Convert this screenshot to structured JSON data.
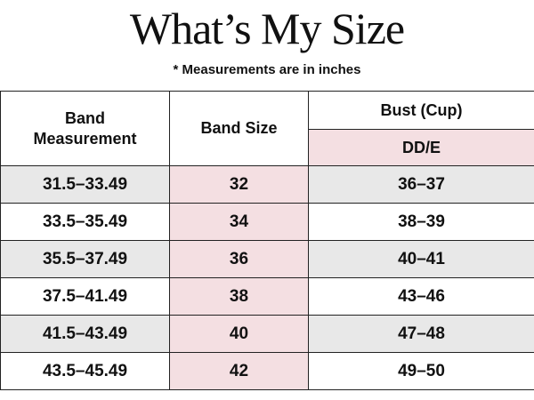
{
  "header": {
    "title": "What’s My Size",
    "note": "* Measurements are in inches"
  },
  "table": {
    "headers": [
      "Band Measurement",
      "Band Size",
      "Bust (Cup)"
    ],
    "subheader": "DD/E",
    "rows": [
      [
        "31.5–33.49",
        "32",
        "36–37"
      ],
      [
        "33.5–35.49",
        "34",
        "38–39"
      ],
      [
        "35.5–37.49",
        "36",
        "40–41"
      ],
      [
        "37.5–41.49",
        "38",
        "43–46"
      ],
      [
        "41.5–43.49",
        "40",
        "47–48"
      ],
      [
        "43.5–45.49",
        "42",
        "49–50"
      ]
    ]
  }
}
